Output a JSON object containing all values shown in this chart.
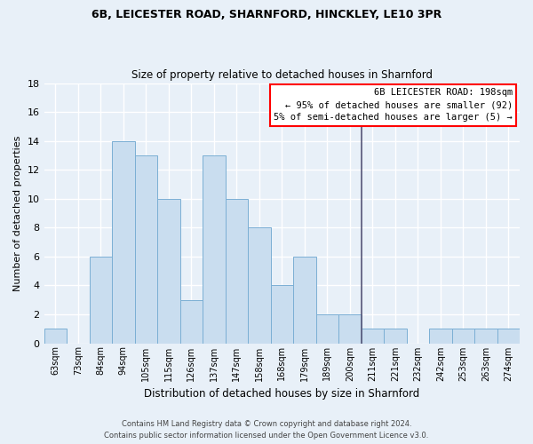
{
  "title1": "6B, LEICESTER ROAD, SHARNFORD, HINCKLEY, LE10 3PR",
  "title2": "Size of property relative to detached houses in Sharnford",
  "xlabel": "Distribution of detached houses by size in Sharnford",
  "ylabel": "Number of detached properties",
  "bar_labels": [
    "63sqm",
    "73sqm",
    "84sqm",
    "94sqm",
    "105sqm",
    "115sqm",
    "126sqm",
    "137sqm",
    "147sqm",
    "158sqm",
    "168sqm",
    "179sqm",
    "189sqm",
    "200sqm",
    "211sqm",
    "221sqm",
    "232sqm",
    "242sqm",
    "253sqm",
    "263sqm",
    "274sqm"
  ],
  "bar_values": [
    1,
    0,
    6,
    14,
    13,
    10,
    3,
    13,
    10,
    8,
    4,
    6,
    2,
    2,
    1,
    1,
    0,
    1,
    1,
    1,
    1
  ],
  "bar_color": "#c9ddef",
  "bar_edge_color": "#7bafd4",
  "background_color": "#e8f0f8",
  "grid_color": "#ffffff",
  "vline_x_index": 13,
  "vline_color": "#555577",
  "annotation_title": "6B LEICESTER ROAD: 198sqm",
  "annotation_line1": "← 95% of detached houses are smaller (92)",
  "annotation_line2": "5% of semi-detached houses are larger (5) →",
  "annotation_box_color": "#ffffff",
  "annotation_border_color": "red",
  "footer1": "Contains HM Land Registry data © Crown copyright and database right 2024.",
  "footer2": "Contains public sector information licensed under the Open Government Licence v3.0.",
  "ylim": [
    0,
    18
  ],
  "yticks": [
    0,
    2,
    4,
    6,
    8,
    10,
    12,
    14,
    16,
    18
  ]
}
